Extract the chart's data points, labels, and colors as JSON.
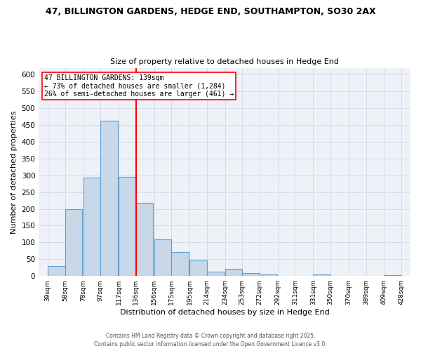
{
  "title1": "47, BILLINGTON GARDENS, HEDGE END, SOUTHAMPTON, SO30 2AX",
  "title2": "Size of property relative to detached houses in Hedge End",
  "xlabel": "Distribution of detached houses by size in Hedge End",
  "ylabel": "Number of detached properties",
  "bar_left_edges": [
    39,
    58,
    78,
    97,
    117,
    136,
    156,
    175,
    195,
    214,
    234,
    253,
    272,
    292,
    311,
    331,
    350,
    370,
    389,
    409
  ],
  "bar_heights": [
    30,
    198,
    292,
    462,
    295,
    218,
    110,
    72,
    46,
    13,
    22,
    9,
    5,
    0,
    0,
    5,
    0,
    0,
    0,
    3
  ],
  "bin_width": 19,
  "bar_facecolor": "#c8d8e8",
  "bar_edgecolor": "#5a9fd4",
  "vline_x": 136,
  "vline_color": "red",
  "annotation_title": "47 BILLINGTON GARDENS: 139sqm",
  "annotation_line1": "← 73% of detached houses are smaller (1,284)",
  "annotation_line2": "26% of semi-detached houses are larger (461) →",
  "annotation_box_color": "white",
  "annotation_box_edgecolor": "red",
  "xlim": [
    29,
    438
  ],
  "ylim": [
    0,
    620
  ],
  "yticks": [
    0,
    50,
    100,
    150,
    200,
    250,
    300,
    350,
    400,
    450,
    500,
    550,
    600
  ],
  "xtick_labels": [
    "39sqm",
    "58sqm",
    "78sqm",
    "97sqm",
    "117sqm",
    "136sqm",
    "156sqm",
    "175sqm",
    "195sqm",
    "214sqm",
    "234sqm",
    "253sqm",
    "272sqm",
    "292sqm",
    "311sqm",
    "331sqm",
    "350sqm",
    "370sqm",
    "389sqm",
    "409sqm",
    "428sqm"
  ],
  "xtick_positions": [
    39,
    58,
    78,
    97,
    117,
    136,
    156,
    175,
    195,
    214,
    234,
    253,
    272,
    292,
    311,
    331,
    350,
    370,
    389,
    409,
    428
  ],
  "grid_color": "#d0d8e8",
  "bg_color": "#eef2f8",
  "footer1": "Contains HM Land Registry data © Crown copyright and database right 2025.",
  "footer2": "Contains public sector information licensed under the Open Government Licence v3.0."
}
